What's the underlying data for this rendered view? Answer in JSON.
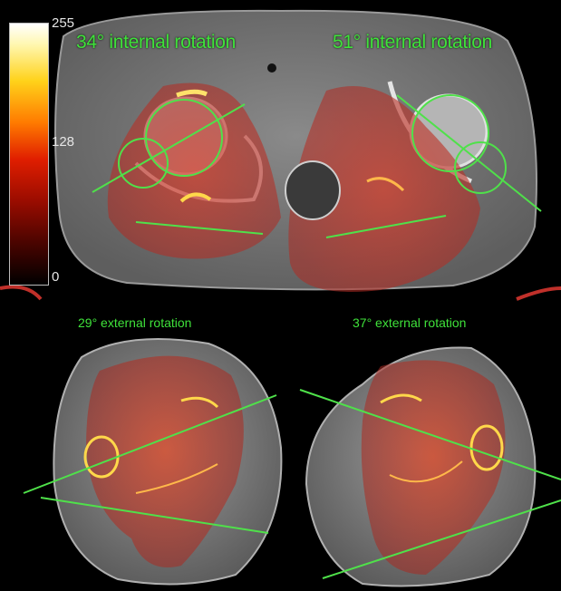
{
  "image": "axial CT pelvis and knee scans with heat-map overlay and rotation angle lines",
  "colorbar": {
    "max_label": "255",
    "mid_label": "128",
    "min_label": "0",
    "colors": [
      "#ffffff",
      "#ffd21a",
      "#ff7a00",
      "#e01e00",
      "#9a0c00",
      "#000000"
    ]
  },
  "hip": {
    "left_label": "34° internal rotation",
    "right_label": "51° internal rotation"
  },
  "knee": {
    "left_label": "29° external rotation",
    "right_label": "37° external rotation"
  },
  "colors": {
    "angle_line": "#4fe14a",
    "overlay": "#c0302a",
    "bone": "#d8d8d8",
    "soft_tissue": "#777777"
  }
}
